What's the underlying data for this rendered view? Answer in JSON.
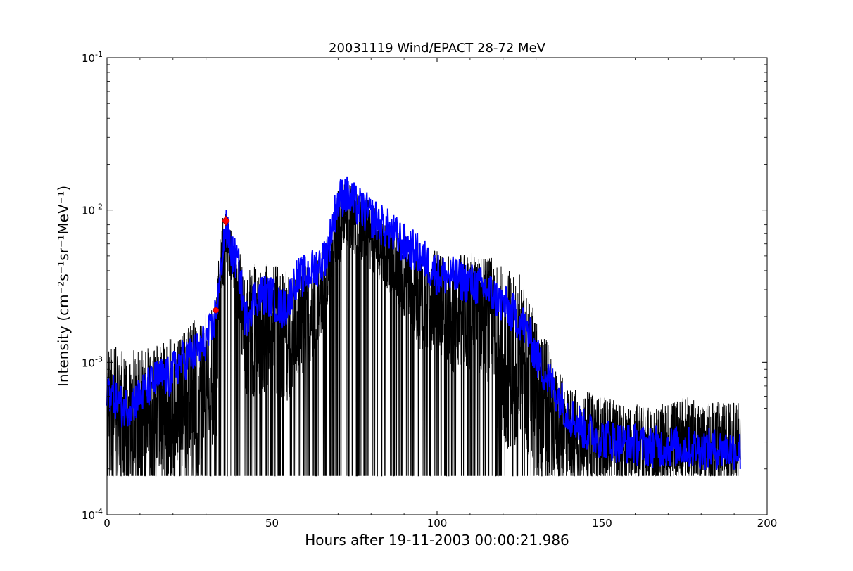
{
  "chart_data": {
    "type": "line",
    "title": "20031119 Wind/EPACT 28-72 MeV",
    "xlabel": "Hours after 19-11-2003 00:00:21.986",
    "ylabel": "Intensity (cm⁻²s⁻¹sr⁻¹MeV⁻¹)",
    "xlim": [
      0,
      200
    ],
    "ylim": [
      0.0001,
      0.1
    ],
    "yscale": "log",
    "grid": false,
    "x_ticks": [
      {
        "value": 0,
        "label": "0"
      },
      {
        "value": 50,
        "label": "50"
      },
      {
        "value": 100,
        "label": "100"
      },
      {
        "value": 150,
        "label": "150"
      },
      {
        "value": 200,
        "label": "200"
      }
    ],
    "y_ticks": [
      {
        "value": 0.0001,
        "base": "10",
        "exp": "-4"
      },
      {
        "value": 0.001,
        "base": "10",
        "exp": "-3"
      },
      {
        "value": 0.01,
        "base": "10",
        "exp": "-2"
      },
      {
        "value": 0.1,
        "base": "10",
        "exp": "-1"
      }
    ],
    "series": [
      {
        "role": "raw",
        "color": "#000000",
        "floor": 0.00018,
        "envelope": {
          "x": [
            0,
            5,
            10,
            15,
            20,
            25,
            30,
            33,
            34,
            35,
            36,
            38,
            40,
            42,
            45,
            50,
            55,
            60,
            65,
            68,
            70,
            72,
            75,
            80,
            85,
            90,
            95,
            100,
            105,
            110,
            115,
            120,
            125,
            130,
            133,
            135,
            138,
            140,
            145,
            150,
            155,
            160,
            165,
            170,
            175,
            180,
            185,
            190,
            192
          ],
          "low": [
            0.00018,
            0.00018,
            0.00018,
            0.00018,
            0.00018,
            0.00018,
            0.00018,
            0.0003,
            0.0015,
            0.003,
            0.004,
            0.003,
            0.0018,
            0.00055,
            0.0006,
            0.0006,
            0.00055,
            0.0008,
            0.0015,
            0.003,
            0.004,
            0.006,
            0.005,
            0.004,
            0.003,
            0.002,
            0.0012,
            0.0012,
            0.00085,
            0.00085,
            0.0008,
            0.00025,
            0.0003,
            0.00018,
            0.00018,
            0.00018,
            0.00018,
            0.00018,
            0.00018,
            0.00018,
            0.00018,
            0.00018,
            0.00018,
            0.00018,
            0.00018,
            0.00018,
            0.00018,
            0.00018,
            0.00018
          ],
          "high": [
            0.0013,
            0.0013,
            0.0012,
            0.0013,
            0.0015,
            0.0018,
            0.0022,
            0.0025,
            0.006,
            0.009,
            0.0095,
            0.007,
            0.0055,
            0.004,
            0.0045,
            0.0045,
            0.0042,
            0.0045,
            0.0055,
            0.008,
            0.015,
            0.017,
            0.015,
            0.011,
            0.0085,
            0.007,
            0.006,
            0.0055,
            0.005,
            0.0055,
            0.005,
            0.0045,
            0.004,
            0.002,
            0.0015,
            0.001,
            0.0008,
            0.0007,
            0.00065,
            0.0006,
            0.00055,
            0.00055,
            0.0005,
            0.00055,
            0.0006,
            0.00055,
            0.00055,
            0.00055,
            0.00055
          ]
        }
      },
      {
        "role": "smoothed",
        "color": "#0000ff",
        "x": [
          0,
          2,
          5,
          8,
          10,
          13,
          16,
          19,
          22,
          25,
          28,
          30,
          32,
          33,
          34,
          35,
          36,
          37,
          38,
          39,
          40,
          41,
          42,
          43,
          45,
          47,
          50,
          53,
          55,
          57,
          60,
          63,
          65,
          67,
          69,
          70,
          72,
          74,
          76,
          78,
          80,
          85,
          90,
          95,
          100,
          105,
          110,
          115,
          120,
          125,
          128,
          130,
          132,
          135,
          138,
          140,
          143,
          145,
          150,
          155,
          160,
          165,
          170,
          175,
          180,
          185,
          190,
          192
        ],
        "y": [
          0.0007,
          0.0006,
          0.0005,
          0.00055,
          0.0006,
          0.0007,
          0.0008,
          0.0008,
          0.001,
          0.0011,
          0.0012,
          0.0014,
          0.0016,
          0.0022,
          0.003,
          0.0055,
          0.0075,
          0.0065,
          0.005,
          0.0048,
          0.004,
          0.0028,
          0.0018,
          0.0022,
          0.0027,
          0.0028,
          0.0027,
          0.0022,
          0.0025,
          0.0035,
          0.0037,
          0.0042,
          0.0045,
          0.0055,
          0.0095,
          0.0115,
          0.0128,
          0.0115,
          0.0105,
          0.0098,
          0.009,
          0.0075,
          0.006,
          0.005,
          0.0038,
          0.0036,
          0.0033,
          0.003,
          0.0024,
          0.0019,
          0.0015,
          0.0011,
          0.0009,
          0.0007,
          0.00055,
          0.00045,
          0.0004,
          0.00035,
          0.00032,
          0.0003,
          0.00029,
          0.00028,
          0.00028,
          0.00028,
          0.00027,
          0.00027,
          0.00027,
          0.00026
        ]
      }
    ],
    "markers": [
      {
        "x": 33,
        "y": 0.0022,
        "shape": "circle",
        "color": "#ff0000"
      },
      {
        "x": 36,
        "y": 0.0085,
        "shape": "diamond",
        "color": "#ff0000"
      }
    ]
  }
}
